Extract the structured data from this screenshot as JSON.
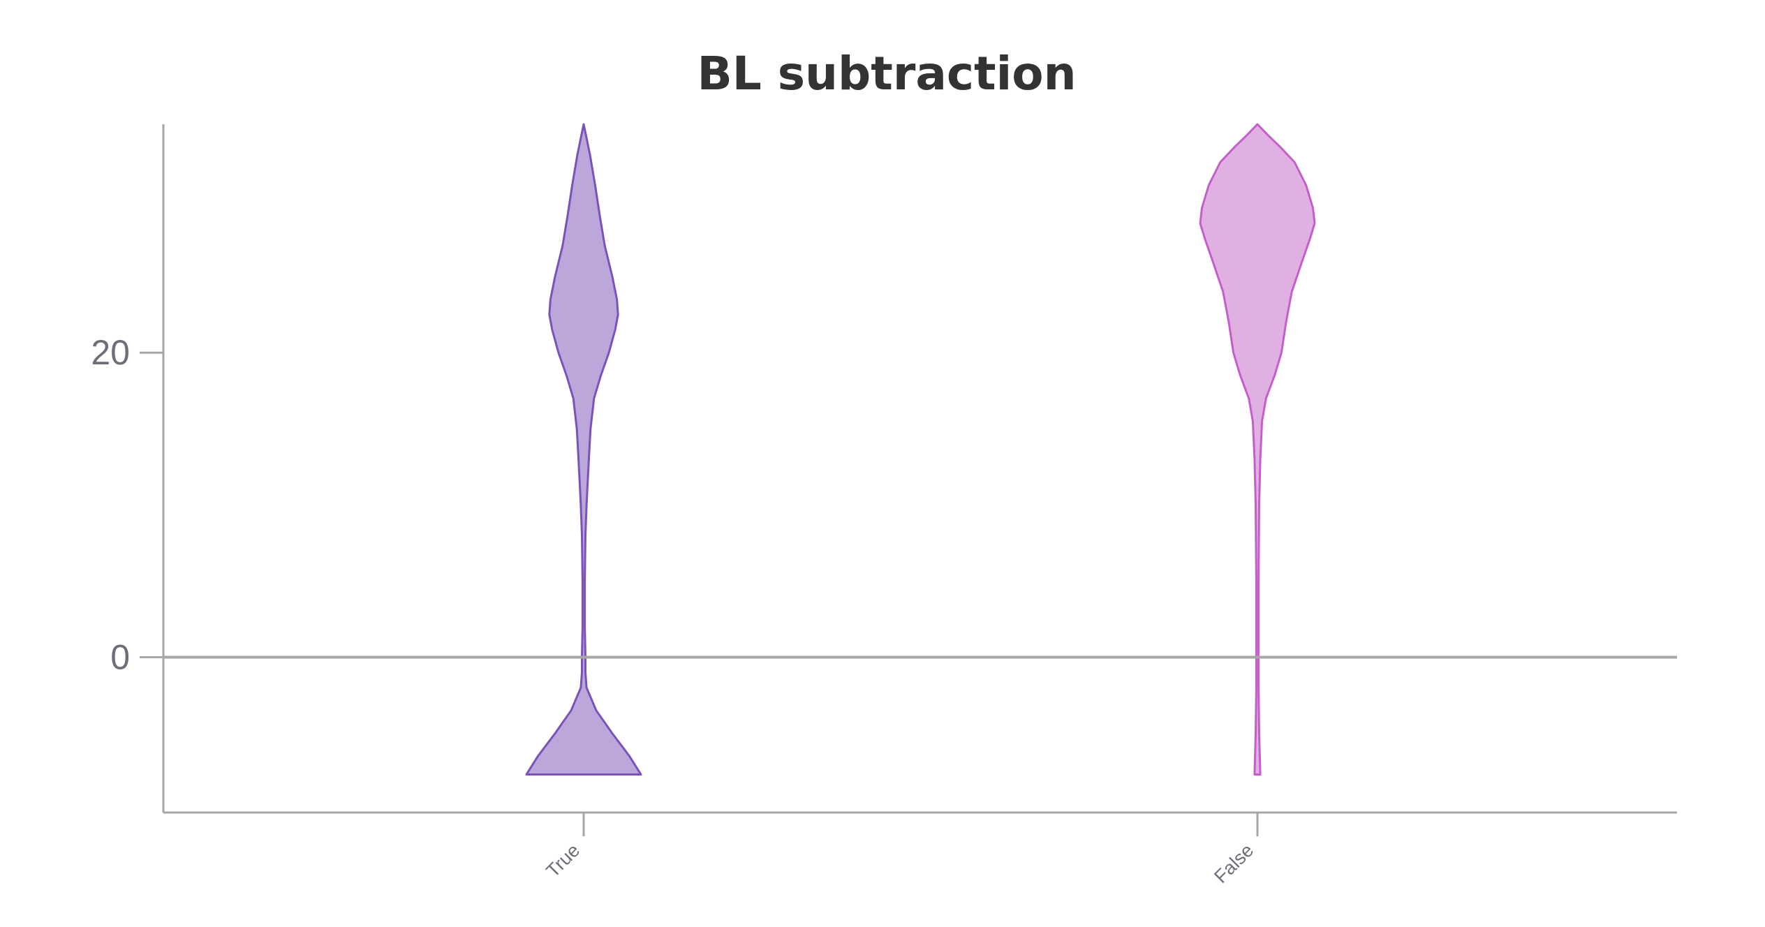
{
  "chart_data": {
    "type": "violin",
    "title": "BL subtraction",
    "xlabel": "",
    "ylabel": "",
    "categories": [
      "True",
      "False"
    ],
    "ylim": [
      -10.2,
      35
    ],
    "yticks": [
      0,
      20
    ],
    "zero_line": true,
    "grid": false,
    "legend": "none",
    "series": [
      {
        "category": "True",
        "color": "#7b52b9",
        "fill": "#bba7da",
        "min": -7.7,
        "max": 35,
        "density": [
          [
            -7.7,
            1.0
          ],
          [
            -6.5,
            0.8
          ],
          [
            -5.0,
            0.5
          ],
          [
            -3.5,
            0.22
          ],
          [
            -2.0,
            0.05
          ],
          [
            -1.0,
            0.03
          ],
          [
            0.0,
            0.03
          ],
          [
            2.0,
            0.02
          ],
          [
            5.0,
            0.02
          ],
          [
            8.0,
            0.03
          ],
          [
            10.0,
            0.05
          ],
          [
            13.0,
            0.09
          ],
          [
            15.0,
            0.12
          ],
          [
            17.0,
            0.18
          ],
          [
            18.5,
            0.3
          ],
          [
            20.0,
            0.44
          ],
          [
            21.5,
            0.55
          ],
          [
            22.5,
            0.6
          ],
          [
            23.5,
            0.58
          ],
          [
            25.0,
            0.5
          ],
          [
            27.0,
            0.37
          ],
          [
            29.0,
            0.28
          ],
          [
            31.0,
            0.2
          ],
          [
            33.0,
            0.11
          ],
          [
            35.0,
            0.0
          ]
        ]
      },
      {
        "category": "False",
        "color": "#c45fc9",
        "fill": "#e1b0e2",
        "min": -7.7,
        "max": 35,
        "density": [
          [
            -7.7,
            0.05
          ],
          [
            -5.0,
            0.03
          ],
          [
            -2.0,
            0.02
          ],
          [
            0.0,
            0.02
          ],
          [
            5.0,
            0.02
          ],
          [
            10.0,
            0.03
          ],
          [
            13.0,
            0.05
          ],
          [
            15.5,
            0.08
          ],
          [
            17.0,
            0.15
          ],
          [
            18.5,
            0.3
          ],
          [
            20.0,
            0.42
          ],
          [
            22.0,
            0.5
          ],
          [
            24.0,
            0.6
          ],
          [
            26.0,
            0.78
          ],
          [
            27.5,
            0.92
          ],
          [
            28.5,
            1.0
          ],
          [
            29.5,
            0.97
          ],
          [
            31.0,
            0.85
          ],
          [
            32.5,
            0.65
          ],
          [
            33.5,
            0.4
          ],
          [
            34.3,
            0.18
          ],
          [
            35.0,
            0.0
          ]
        ]
      }
    ]
  }
}
